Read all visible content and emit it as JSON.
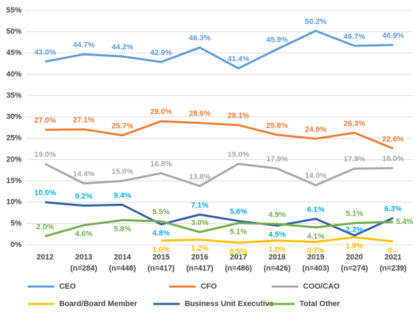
{
  "chart_data": {
    "type": "line",
    "categories": [
      "2012",
      "2013\n(n=284)",
      "2014\n(n=448)",
      "2015\n(n=417)",
      "2016\n(n=417)",
      "2017\n(n=486)",
      "2018\n(n=426)",
      "2019\n(n=403)",
      "2020\n(n=274)",
      "2021\n(n=239)"
    ],
    "ylim": [
      0,
      55
    ],
    "yticks": [
      {
        "value": 0,
        "label": "0%"
      },
      {
        "value": 5,
        "label": "5%"
      },
      {
        "value": 10,
        "label": "10%"
      },
      {
        "value": 15,
        "label": "15%"
      },
      {
        "value": 20,
        "label": "20%"
      },
      {
        "value": 25,
        "label": "25%"
      },
      {
        "value": 30,
        "label": "30%"
      },
      {
        "value": 35,
        "label": "35%"
      },
      {
        "value": 40,
        "label": "40%"
      },
      {
        "value": 45,
        "label": "45%"
      },
      {
        "value": 50,
        "label": "50%"
      },
      {
        "value": 55,
        "label": "55%"
      }
    ],
    "grid": true,
    "legend": "bottom",
    "series": [
      {
        "name": "CEO",
        "color": "#5b9bd5",
        "label_color": "#5b9bd5",
        "values": [
          43.0,
          44.7,
          44.2,
          42.9,
          46.3,
          41.4,
          45.9,
          50.2,
          46.7,
          46.9
        ],
        "value_labels": [
          "43.0%",
          "44.7%",
          "44.2%",
          "42.9%",
          "46.3%",
          "41.4%",
          "45.9%",
          "50.2%",
          "46.7%",
          "46.9%"
        ]
      },
      {
        "name": "CFO",
        "color": "#ed7d31",
        "label_color": "#ed7d31",
        "values": [
          27.0,
          27.1,
          25.7,
          29.0,
          28.6,
          28.1,
          25.8,
          24.9,
          26.3,
          22.6
        ],
        "value_labels": [
          "27.0%",
          "27.1%",
          "25.7%",
          "29.0%",
          "28.6%",
          "28.1%",
          "25.8%",
          "24.9%",
          "26.3%",
          "22.6%"
        ]
      },
      {
        "name": "COO/CAO",
        "color": "#a5a5a5",
        "label_color": "#a5a5a5",
        "values": [
          19.0,
          14.4,
          15.0,
          16.8,
          13.8,
          19.0,
          17.9,
          14.0,
          17.9,
          18.0
        ],
        "value_labels": [
          "19.0%",
          "14.4%",
          "15.0%",
          "16.8%",
          "13.8%",
          "19.0%",
          "17.9%",
          "14.0%",
          "17.9%",
          "18.0%"
        ]
      },
      {
        "name": "Board/Board Member",
        "color": "#ffc000",
        "label_color": "#ffc000",
        "values": [
          null,
          null,
          null,
          1.0,
          1.2,
          0.5,
          1.0,
          0.7,
          1.8,
          0.8
        ],
        "value_labels": [
          null,
          null,
          null,
          "1.0%",
          "1.2%",
          "0.5%",
          "1.0%",
          "0.7%",
          "1.8%",
          "0..."
        ]
      },
      {
        "name": "Business Unit Executive",
        "color": "#2f5ea8",
        "label_color": "#00b0f0",
        "values": [
          10.0,
          9.2,
          9.4,
          4.8,
          7.1,
          5.6,
          4.5,
          6.1,
          2.2,
          6.3
        ],
        "value_labels": [
          "10.0%",
          "9.2%",
          "9.4%",
          "4.8%",
          "7.1%",
          "5.6%",
          "4.5%",
          "6.1%",
          "2.2%",
          "6.3%"
        ]
      },
      {
        "name": "Total Other",
        "color": "#70ad47",
        "label_color": "#70ad47",
        "values": [
          2.0,
          4.6,
          5.8,
          5.5,
          3.0,
          5.1,
          4.9,
          4.1,
          5.1,
          5.4
        ],
        "value_labels": [
          "2.0%",
          "4.6%",
          "5.8%",
          "5.5%",
          "3.0%",
          "5.1%",
          "4.9%",
          "4.1%",
          "5.1%",
          "5.4%"
        ]
      }
    ]
  }
}
